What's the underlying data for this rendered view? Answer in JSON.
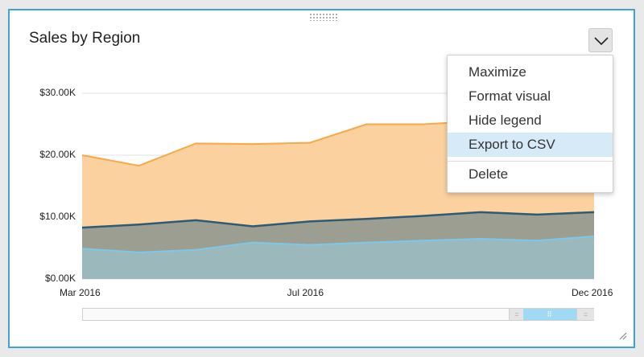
{
  "visual": {
    "title": "Sales by Region"
  },
  "menu": {
    "items": [
      {
        "label": "Maximize",
        "highlighted": false
      },
      {
        "label": "Format visual",
        "highlighted": false
      },
      {
        "label": "Hide legend",
        "highlighted": false
      },
      {
        "label": "Export to CSV",
        "highlighted": true
      },
      {
        "label": "Delete",
        "highlighted": false
      }
    ]
  },
  "icons": {
    "dropdown": "chevron-down-icon",
    "drag": "drag-handle-icon",
    "resize": "resize-icon"
  },
  "colors": {
    "accent_border": "#3ea3d6",
    "series_orange": "#f5a947",
    "series_orange_fill": "#fbd19f",
    "series_dark": "#2f5a74",
    "series_dark_fill": "#8b958e",
    "series_light": "#7cc7ea",
    "series_light_fill": "#9bbdc3",
    "scroll_thumb": "#9fd9f4"
  },
  "chart_data": {
    "type": "area",
    "title": "Sales by Region",
    "stacked": false,
    "x": [
      "2016-03",
      "2016-04",
      "2016-05",
      "2016-06",
      "2016-07",
      "2016-08",
      "2016-09",
      "2016-10",
      "2016-11",
      "2016-12"
    ],
    "x_ticks": [
      "Mar 2016",
      "Jul 2016",
      "Dec 2016"
    ],
    "y_ticks": [
      "$0.00K",
      "$10.00K",
      "$20.00K",
      "$30.00K"
    ],
    "ylim": [
      0,
      30000
    ],
    "grid": true,
    "series": [
      {
        "color": "#f5a947",
        "values": [
          20000,
          18300,
          21900,
          21800,
          22000,
          25000,
          25000,
          25500,
          25300,
          25600
        ]
      },
      {
        "color": "#2f5a74",
        "values": [
          8300,
          8800,
          9500,
          8500,
          9300,
          9700,
          10200,
          10800,
          10400,
          10800
        ]
      },
      {
        "color": "#7cc7ea",
        "values": [
          4900,
          4300,
          4700,
          5900,
          5500,
          5900,
          6200,
          6500,
          6200,
          6900
        ]
      }
    ]
  }
}
